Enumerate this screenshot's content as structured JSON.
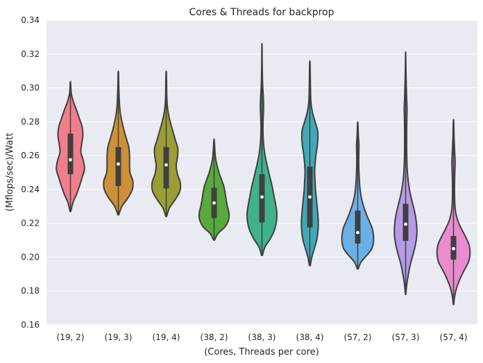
{
  "chart_data": {
    "type": "violin",
    "title": "Cores & Threads for backprop",
    "xlabel": "(Cores, Threads per core)",
    "ylabel": "(Mflops/sec)/Watt",
    "ylim": [
      0.16,
      0.34
    ],
    "yticks": [
      "0.16",
      "0.18",
      "0.20",
      "0.22",
      "0.24",
      "0.26",
      "0.28",
      "0.30",
      "0.32",
      "0.34"
    ],
    "grid": true,
    "background": "#eaeaf2",
    "categories": [
      "(19, 2)",
      "(19, 3)",
      "(19, 4)",
      "(38, 2)",
      "(38, 3)",
      "(38, 4)",
      "(57, 2)",
      "(57, 3)",
      "(57, 4)"
    ],
    "series": [
      {
        "category": "(19, 2)",
        "color": "#f07f8c",
        "min": 0.227,
        "max": 0.303,
        "q1": 0.249,
        "median": 0.2575,
        "q3": 0.273,
        "density": [
          [
            0.227,
            0.02
          ],
          [
            0.232,
            0.12
          ],
          [
            0.237,
            0.3
          ],
          [
            0.242,
            0.45
          ],
          [
            0.247,
            0.58
          ],
          [
            0.252,
            0.7
          ],
          [
            0.257,
            0.64
          ],
          [
            0.262,
            0.52
          ],
          [
            0.267,
            0.56
          ],
          [
            0.272,
            0.62
          ],
          [
            0.277,
            0.58
          ],
          [
            0.282,
            0.44
          ],
          [
            0.287,
            0.3
          ],
          [
            0.292,
            0.14
          ],
          [
            0.297,
            0.04
          ],
          [
            0.303,
            0.01
          ]
        ]
      },
      {
        "category": "(19, 3)",
        "color": "#cd9037",
        "min": 0.225,
        "max": 0.309,
        "q1": 0.242,
        "median": 0.255,
        "q3": 0.265,
        "density": [
          [
            0.225,
            0.02
          ],
          [
            0.23,
            0.18
          ],
          [
            0.235,
            0.48
          ],
          [
            0.24,
            0.7
          ],
          [
            0.245,
            0.72
          ],
          [
            0.25,
            0.58
          ],
          [
            0.255,
            0.56
          ],
          [
            0.26,
            0.56
          ],
          [
            0.265,
            0.52
          ],
          [
            0.27,
            0.4
          ],
          [
            0.275,
            0.28
          ],
          [
            0.28,
            0.18
          ],
          [
            0.285,
            0.1
          ],
          [
            0.29,
            0.06
          ],
          [
            0.295,
            0.04
          ],
          [
            0.302,
            0.02
          ],
          [
            0.309,
            0.01
          ]
        ]
      },
      {
        "category": "(19, 4)",
        "color": "#9b9d37",
        "min": 0.224,
        "max": 0.309,
        "q1": 0.2405,
        "median": 0.2545,
        "q3": 0.265,
        "density": [
          [
            0.224,
            0.02
          ],
          [
            0.229,
            0.16
          ],
          [
            0.234,
            0.45
          ],
          [
            0.239,
            0.68
          ],
          [
            0.244,
            0.7
          ],
          [
            0.249,
            0.56
          ],
          [
            0.254,
            0.5
          ],
          [
            0.259,
            0.56
          ],
          [
            0.264,
            0.58
          ],
          [
            0.269,
            0.46
          ],
          [
            0.274,
            0.34
          ],
          [
            0.279,
            0.22
          ],
          [
            0.284,
            0.12
          ],
          [
            0.289,
            0.06
          ],
          [
            0.295,
            0.03
          ],
          [
            0.302,
            0.02
          ],
          [
            0.309,
            0.01
          ]
        ]
      },
      {
        "category": "(38, 2)",
        "color": "#57aa3b",
        "min": 0.21,
        "max": 0.269,
        "q1": 0.223,
        "median": 0.232,
        "q3": 0.241,
        "density": [
          [
            0.21,
            0.02
          ],
          [
            0.214,
            0.2
          ],
          [
            0.218,
            0.55
          ],
          [
            0.222,
            0.72
          ],
          [
            0.226,
            0.74
          ],
          [
            0.23,
            0.66
          ],
          [
            0.234,
            0.6
          ],
          [
            0.238,
            0.55
          ],
          [
            0.242,
            0.48
          ],
          [
            0.246,
            0.36
          ],
          [
            0.25,
            0.24
          ],
          [
            0.254,
            0.15
          ],
          [
            0.258,
            0.08
          ],
          [
            0.263,
            0.04
          ],
          [
            0.269,
            0.01
          ]
        ]
      },
      {
        "category": "(38, 3)",
        "color": "#3fb18e",
        "min": 0.201,
        "max": 0.325,
        "q1": 0.2205,
        "median": 0.2355,
        "q3": 0.249,
        "density": [
          [
            0.201,
            0.02
          ],
          [
            0.206,
            0.15
          ],
          [
            0.211,
            0.42
          ],
          [
            0.216,
            0.62
          ],
          [
            0.221,
            0.72
          ],
          [
            0.226,
            0.74
          ],
          [
            0.231,
            0.68
          ],
          [
            0.236,
            0.6
          ],
          [
            0.241,
            0.52
          ],
          [
            0.246,
            0.42
          ],
          [
            0.251,
            0.32
          ],
          [
            0.256,
            0.22
          ],
          [
            0.261,
            0.14
          ],
          [
            0.267,
            0.08
          ],
          [
            0.274,
            0.05
          ],
          [
            0.282,
            0.06
          ],
          [
            0.288,
            0.08
          ],
          [
            0.294,
            0.07
          ],
          [
            0.3,
            0.04
          ],
          [
            0.308,
            0.02
          ],
          [
            0.316,
            0.01
          ],
          [
            0.325,
            0.005
          ]
        ]
      },
      {
        "category": "(38, 4)",
        "color": "#40a9b9",
        "min": 0.195,
        "max": 0.315,
        "q1": 0.2175,
        "median": 0.2355,
        "q3": 0.2535,
        "density": [
          [
            0.195,
            0.02
          ],
          [
            0.2,
            0.1
          ],
          [
            0.205,
            0.22
          ],
          [
            0.21,
            0.34
          ],
          [
            0.215,
            0.4
          ],
          [
            0.22,
            0.42
          ],
          [
            0.225,
            0.4
          ],
          [
            0.23,
            0.36
          ],
          [
            0.235,
            0.32
          ],
          [
            0.24,
            0.28
          ],
          [
            0.245,
            0.26
          ],
          [
            0.25,
            0.24
          ],
          [
            0.255,
            0.26
          ],
          [
            0.26,
            0.3
          ],
          [
            0.265,
            0.36
          ],
          [
            0.27,
            0.4
          ],
          [
            0.275,
            0.38
          ],
          [
            0.28,
            0.26
          ],
          [
            0.286,
            0.12
          ],
          [
            0.292,
            0.05
          ],
          [
            0.3,
            0.03
          ],
          [
            0.308,
            0.02
          ],
          [
            0.315,
            0.01
          ]
        ]
      },
      {
        "category": "(57, 2)",
        "color": "#6ab0e6",
        "min": 0.193,
        "max": 0.279,
        "q1": 0.208,
        "median": 0.2145,
        "q3": 0.2275,
        "density": [
          [
            0.193,
            0.02
          ],
          [
            0.197,
            0.16
          ],
          [
            0.201,
            0.45
          ],
          [
            0.205,
            0.7
          ],
          [
            0.209,
            0.78
          ],
          [
            0.213,
            0.78
          ],
          [
            0.217,
            0.72
          ],
          [
            0.221,
            0.58
          ],
          [
            0.225,
            0.44
          ],
          [
            0.229,
            0.32
          ],
          [
            0.233,
            0.22
          ],
          [
            0.237,
            0.15
          ],
          [
            0.242,
            0.1
          ],
          [
            0.248,
            0.07
          ],
          [
            0.254,
            0.05
          ],
          [
            0.26,
            0.05
          ],
          [
            0.266,
            0.06
          ],
          [
            0.272,
            0.03
          ],
          [
            0.279,
            0.01
          ]
        ]
      },
      {
        "category": "(57, 3)",
        "color": "#b69ae6",
        "min": 0.178,
        "max": 0.32,
        "q1": 0.2095,
        "median": 0.2195,
        "q3": 0.2315,
        "density": [
          [
            0.178,
            0.01
          ],
          [
            0.184,
            0.06
          ],
          [
            0.19,
            0.14
          ],
          [
            0.196,
            0.24
          ],
          [
            0.202,
            0.38
          ],
          [
            0.208,
            0.5
          ],
          [
            0.214,
            0.56
          ],
          [
            0.22,
            0.54
          ],
          [
            0.226,
            0.46
          ],
          [
            0.232,
            0.34
          ],
          [
            0.238,
            0.22
          ],
          [
            0.244,
            0.14
          ],
          [
            0.25,
            0.09
          ],
          [
            0.258,
            0.06
          ],
          [
            0.266,
            0.05
          ],
          [
            0.274,
            0.05
          ],
          [
            0.282,
            0.06
          ],
          [
            0.288,
            0.07
          ],
          [
            0.294,
            0.05
          ],
          [
            0.302,
            0.03
          ],
          [
            0.311,
            0.015
          ],
          [
            0.32,
            0.005
          ]
        ]
      },
      {
        "category": "(57, 4)",
        "color": "#e98bcf",
        "min": 0.172,
        "max": 0.28,
        "q1": 0.1985,
        "median": 0.205,
        "q3": 0.2125,
        "density": [
          [
            0.172,
            0.01
          ],
          [
            0.177,
            0.06
          ],
          [
            0.182,
            0.16
          ],
          [
            0.187,
            0.32
          ],
          [
            0.192,
            0.52
          ],
          [
            0.197,
            0.74
          ],
          [
            0.202,
            0.82
          ],
          [
            0.207,
            0.78
          ],
          [
            0.212,
            0.6
          ],
          [
            0.217,
            0.38
          ],
          [
            0.222,
            0.2
          ],
          [
            0.227,
            0.1
          ],
          [
            0.233,
            0.06
          ],
          [
            0.24,
            0.05
          ],
          [
            0.248,
            0.06
          ],
          [
            0.256,
            0.08
          ],
          [
            0.262,
            0.06
          ],
          [
            0.27,
            0.03
          ],
          [
            0.28,
            0.01
          ]
        ]
      }
    ]
  }
}
